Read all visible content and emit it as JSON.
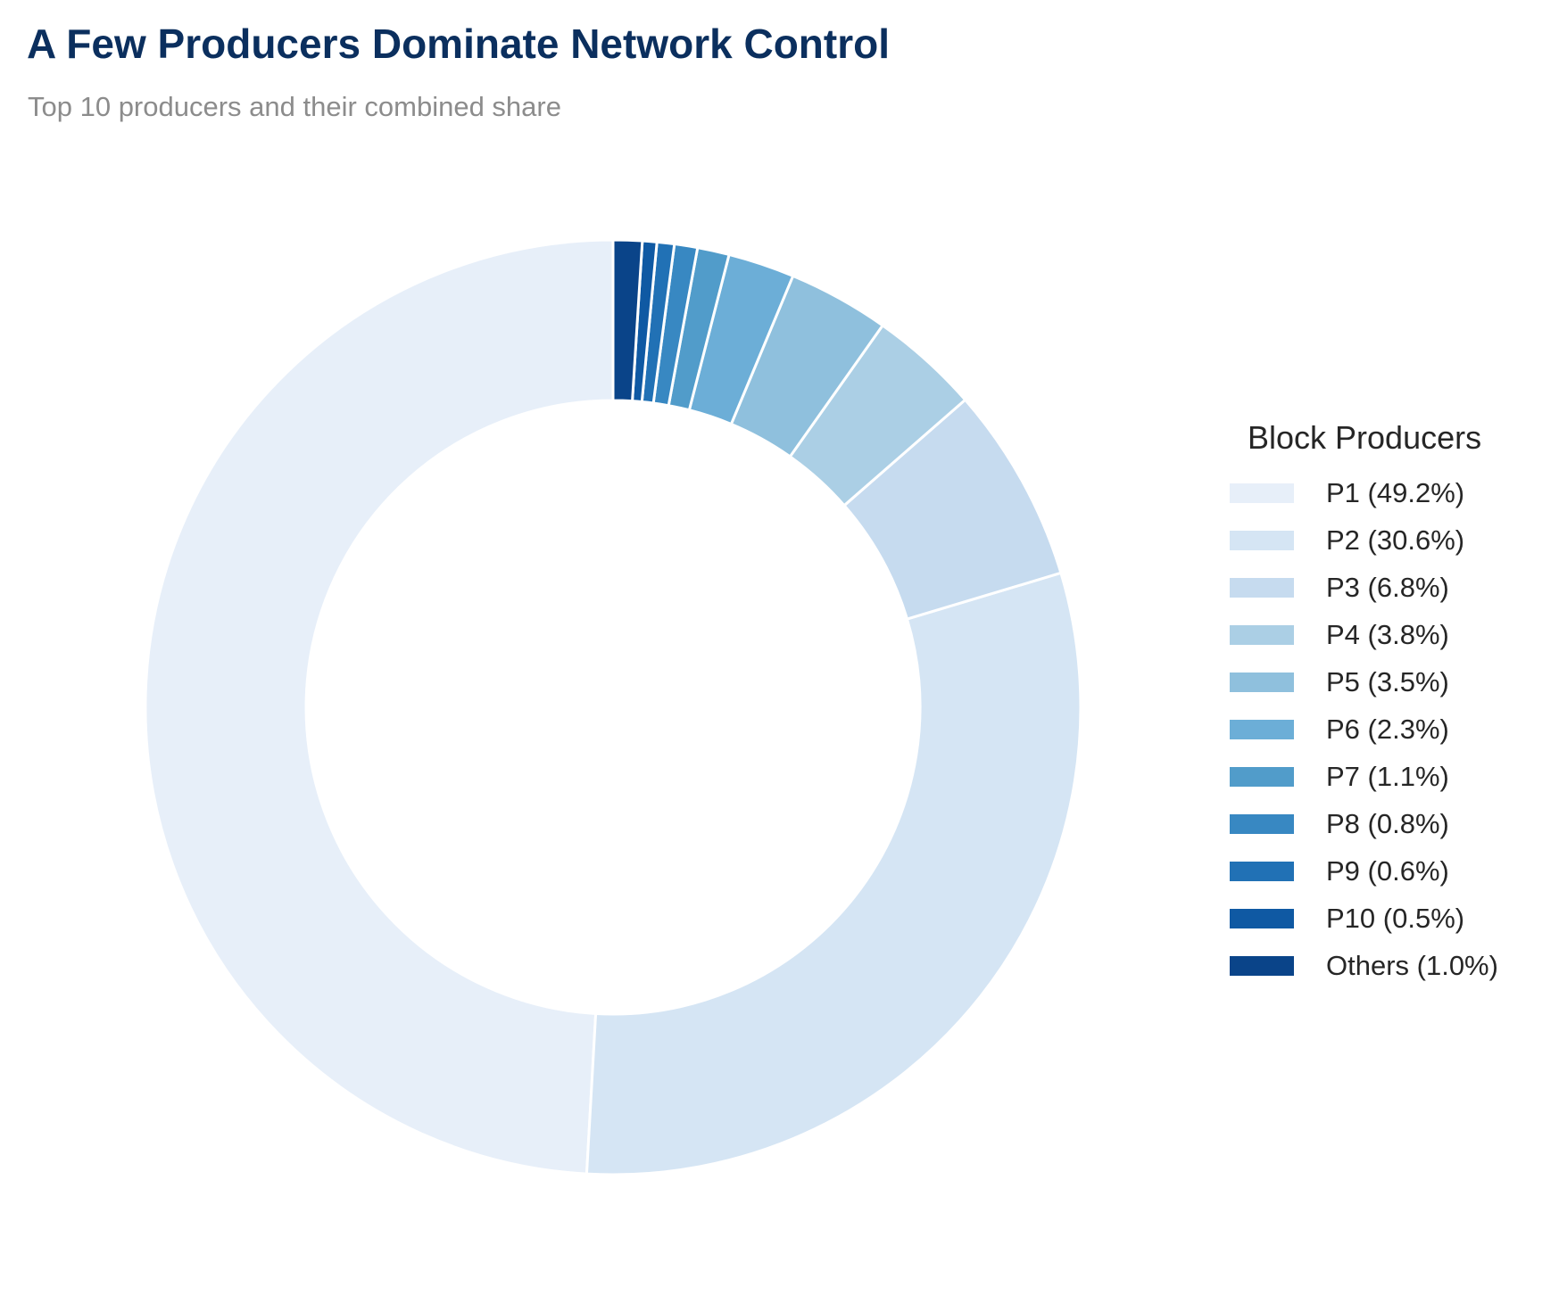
{
  "title": "A Few Producers Dominate Network Control",
  "subtitle": "Top 10 producers and their combined share",
  "legend": {
    "title": "Block Producers",
    "items": [
      {
        "label": "P1 (49.2%)",
        "color": "#e7eff9"
      },
      {
        "label": "P2 (30.6%)",
        "color": "#d5e5f4"
      },
      {
        "label": "P3 (6.8%)",
        "color": "#c6dbef"
      },
      {
        "label": "P4 (3.8%)",
        "color": "#abcfe5"
      },
      {
        "label": "P5 (3.5%)",
        "color": "#8fc0dd"
      },
      {
        "label": "P6 (2.3%)",
        "color": "#6caed7"
      },
      {
        "label": "P7 (1.1%)",
        "color": "#519cca"
      },
      {
        "label": "P8 (0.8%)",
        "color": "#3888c2"
      },
      {
        "label": "P9 (0.6%)",
        "color": "#2171b5"
      },
      {
        "label": "P10 (0.5%)",
        "color": "#0f59a3"
      },
      {
        "label": "Others (1.0%)",
        "color": "#0a4489"
      }
    ]
  },
  "chart_data": {
    "type": "pie",
    "variant": "donut",
    "title": "A Few Producers Dominate Network Control",
    "subtitle": "Top 10 producers and their combined share",
    "legend_title": "Block Producers",
    "legend_position": "right",
    "start": "top",
    "direction": "counterclockwise",
    "slices": [
      {
        "name": "P1",
        "value": 49.2,
        "color": "#e7eff9"
      },
      {
        "name": "P2",
        "value": 30.6,
        "color": "#d5e5f4"
      },
      {
        "name": "P3",
        "value": 6.8,
        "color": "#c6dbef"
      },
      {
        "name": "P4",
        "value": 3.8,
        "color": "#abcfe5"
      },
      {
        "name": "P5",
        "value": 3.5,
        "color": "#8fc0dd"
      },
      {
        "name": "P6",
        "value": 2.3,
        "color": "#6caed7"
      },
      {
        "name": "P7",
        "value": 1.1,
        "color": "#519cca"
      },
      {
        "name": "P8",
        "value": 0.8,
        "color": "#3888c2"
      },
      {
        "name": "P9",
        "value": 0.6,
        "color": "#2171b5"
      },
      {
        "name": "P10",
        "value": 0.5,
        "color": "#0f59a3"
      },
      {
        "name": "Others",
        "value": 1.0,
        "color": "#0a4489"
      }
    ]
  }
}
